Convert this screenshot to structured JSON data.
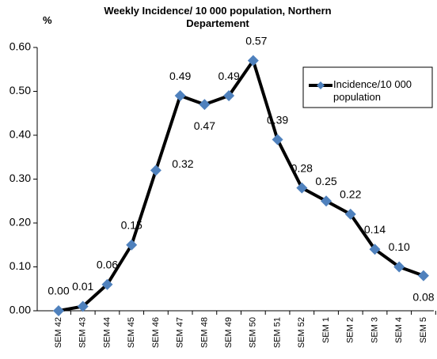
{
  "chart_data": {
    "type": "line",
    "title": "Weekly Incidence/ 10 000 population, Northern Departement",
    "y_label": "%",
    "categories": [
      "SEM 42",
      "SEM 43",
      "SEM 44",
      "SEM 45",
      "SEM 46",
      "SEM 47",
      "SEM 48",
      "SEM 49",
      "SEM 50",
      "SEM 51",
      "SEM 52",
      "SEM 1",
      "SEM 2",
      "SEM 3",
      "SEM 4",
      "SEM 5"
    ],
    "series": [
      {
        "name": "Incidence/10 000 population",
        "color": "#000000",
        "marker_color": "#4f81bd",
        "values": [
          0.0,
          0.01,
          0.06,
          0.15,
          0.32,
          0.49,
          0.47,
          0.49,
          0.57,
          0.39,
          0.28,
          0.25,
          0.22,
          0.14,
          0.1,
          0.08
        ],
        "value_labels": [
          "0.00",
          "0.01",
          "0.06",
          "0.15",
          "0.32",
          "0.49",
          "0.47",
          "0.49",
          "0.57",
          "0.39",
          "0.28",
          "0.25",
          "0.22",
          "0.14",
          "0.10",
          "0.08"
        ]
      }
    ],
    "ylim": [
      0,
      0.6
    ],
    "yticks": [
      {
        "value": 0,
        "label": "0.00"
      },
      {
        "value": 0.1,
        "label": "0.10"
      },
      {
        "value": 0.2,
        "label": "0.20"
      },
      {
        "value": 0.3,
        "label": "0.30"
      },
      {
        "value": 0.4,
        "label": "0.40"
      },
      {
        "value": 0.5,
        "label": "0.50"
      },
      {
        "value": 0.6,
        "label": "0.60"
      }
    ],
    "legend": "right",
    "grid": false
  }
}
